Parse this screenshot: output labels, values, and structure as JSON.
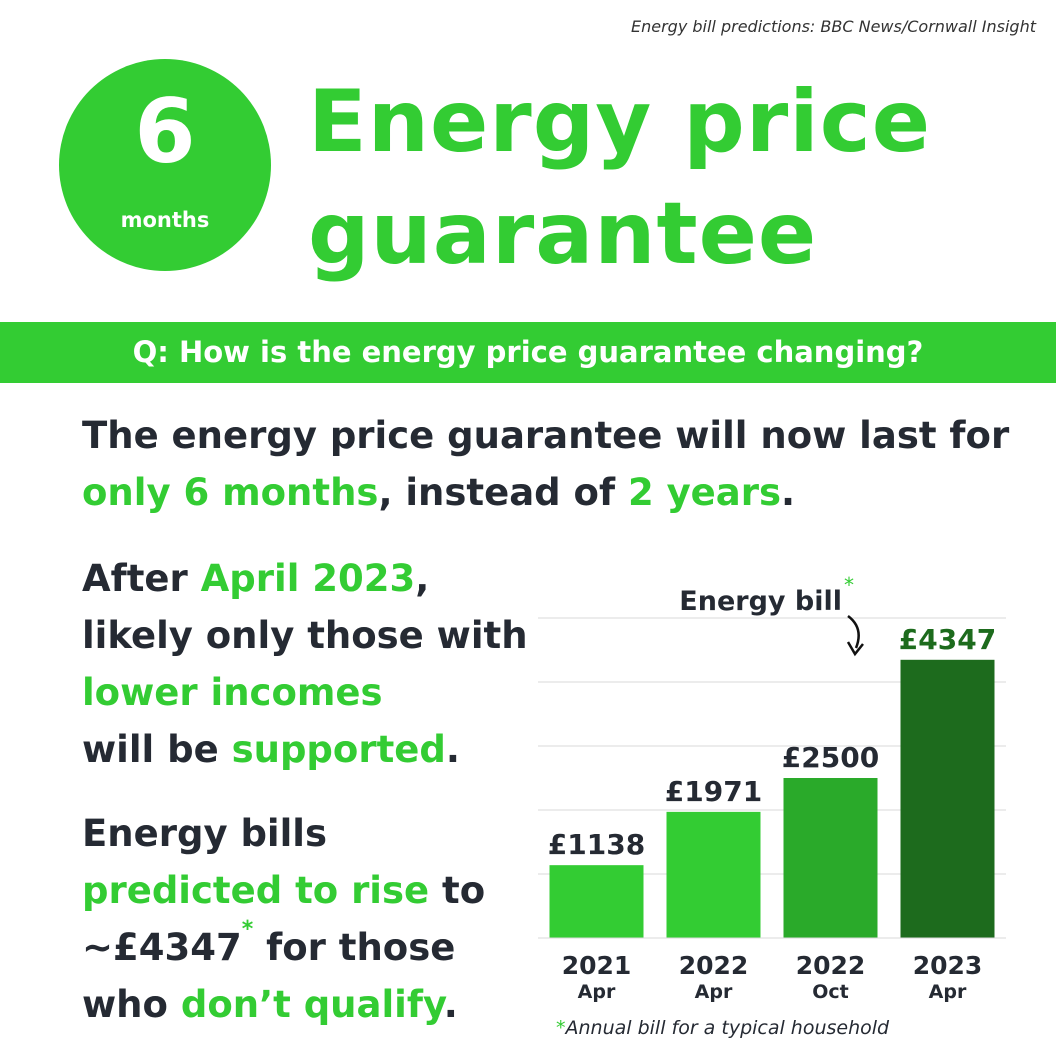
{
  "source": "Energy bill predictions: BBC News/Cornwall Insight",
  "badge": {
    "number": "6",
    "unit": "months"
  },
  "title": {
    "line1": "Energy price",
    "line2": "guarantee"
  },
  "question": "Q: How is the energy price guarantee changing?",
  "paragraph1": {
    "a": "The energy price guarantee will now last for",
    "b": "only 6 months",
    "c": ", instead of ",
    "d": "2 years",
    "e": "."
  },
  "paragraph2": {
    "a": "After ",
    "b": "April 2023",
    "c": ",",
    "d": "likely only those with",
    "e": "lower incomes",
    "f": "will be ",
    "g": "supported",
    "h": "."
  },
  "paragraph3": {
    "a": "Energy bills",
    "b": "predicted to rise",
    "c": " to",
    "d": "~£4347",
    "e": "*",
    "f": " for those",
    "g": "who ",
    "h": "don’t qualify",
    "i": "."
  },
  "colors": {
    "green": "#33cc33",
    "dark_text": "#252a33",
    "bar_colors": [
      "#33cc33",
      "#33cc33",
      "#2aaa2a",
      "#1d6b1d"
    ],
    "last_label_color": "#1d6b1d"
  },
  "chart_data": {
    "type": "bar",
    "annotation": "Energy bill",
    "annotation_mark": "*",
    "categories": [
      "2021",
      "2022",
      "2022",
      "2023"
    ],
    "subcategories": [
      "Apr",
      "Apr",
      "Oct",
      "Apr"
    ],
    "values": [
      1138,
      1971,
      2500,
      4347
    ],
    "value_labels": [
      "£1138",
      "£1971",
      "£2500",
      "£4347"
    ],
    "ylim": [
      0,
      5000
    ],
    "grid": true,
    "footnote": "*Annual bill for a typical household"
  }
}
